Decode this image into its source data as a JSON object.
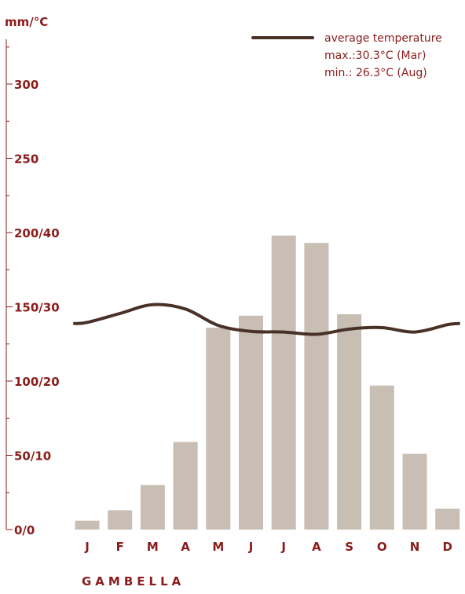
{
  "chart_data": {
    "type": "bar+line",
    "unit_label": "mm/°C",
    "station": "GAMBELLA",
    "categories": [
      "J",
      "F",
      "M",
      "A",
      "M",
      "J",
      "J",
      "A",
      "S",
      "O",
      "N",
      "D"
    ],
    "precipitation_mm": [
      6,
      13,
      30,
      59,
      136,
      144,
      198,
      193,
      145,
      97,
      51,
      14
    ],
    "temperature_c": [
      27.9,
      29.1,
      30.3,
      29.7,
      27.5,
      26.7,
      26.6,
      26.3,
      27.0,
      27.2,
      26.6,
      27.6
    ],
    "y_ticks": [
      "0/0",
      "50/10",
      "100/20",
      "150/30",
      "200/40",
      "250",
      "300"
    ],
    "ylim_mm": [
      0,
      330
    ],
    "legend": {
      "label": "average temperature",
      "max": "max.:30.3°C (Mar)",
      "min": "min.: 26.3°C (Aug)"
    },
    "colors": {
      "bar": "#c8beb4",
      "line": "#4a3128",
      "axis": "#8b1c1c"
    }
  }
}
